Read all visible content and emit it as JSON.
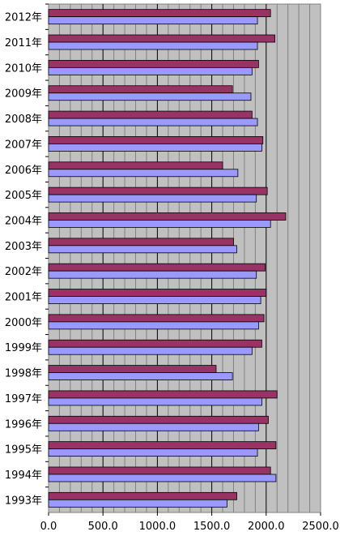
{
  "chart_data": {
    "type": "bar",
    "orientation": "horizontal",
    "categories": [
      "2012年",
      "2011年",
      "2010年",
      "2009年",
      "2008年",
      "2007年",
      "2006年",
      "2005年",
      "2004年",
      "2003年",
      "2002年",
      "2001年",
      "2000年",
      "1999年",
      "1998年",
      "1997年",
      "1996年",
      "1995年",
      "1994年",
      "1993年"
    ],
    "series": [
      {
        "color": "#993366",
        "values": [
          2040,
          2080,
          1930,
          1690,
          1870,
          1970,
          1600,
          2010,
          2180,
          1700,
          1990,
          2000,
          1980,
          1960,
          1540,
          2100,
          2020,
          2090,
          2040,
          1730
        ]
      },
      {
        "color": "#9999ff",
        "values": [
          1920,
          1920,
          1870,
          1860,
          1920,
          1960,
          1740,
          1910,
          2040,
          1730,
          1910,
          1950,
          1930,
          1870,
          1690,
          1960,
          1930,
          1920,
          2090,
          1640
        ]
      }
    ],
    "xlim": [
      0,
      2500
    ],
    "xticks": [
      "0.0",
      "500.0",
      "1000.0",
      "1500.0",
      "2000.0",
      "2500.0"
    ],
    "grid": true,
    "plot_background": "#c0c0c0",
    "title": "",
    "xlabel": "",
    "ylabel": ""
  }
}
